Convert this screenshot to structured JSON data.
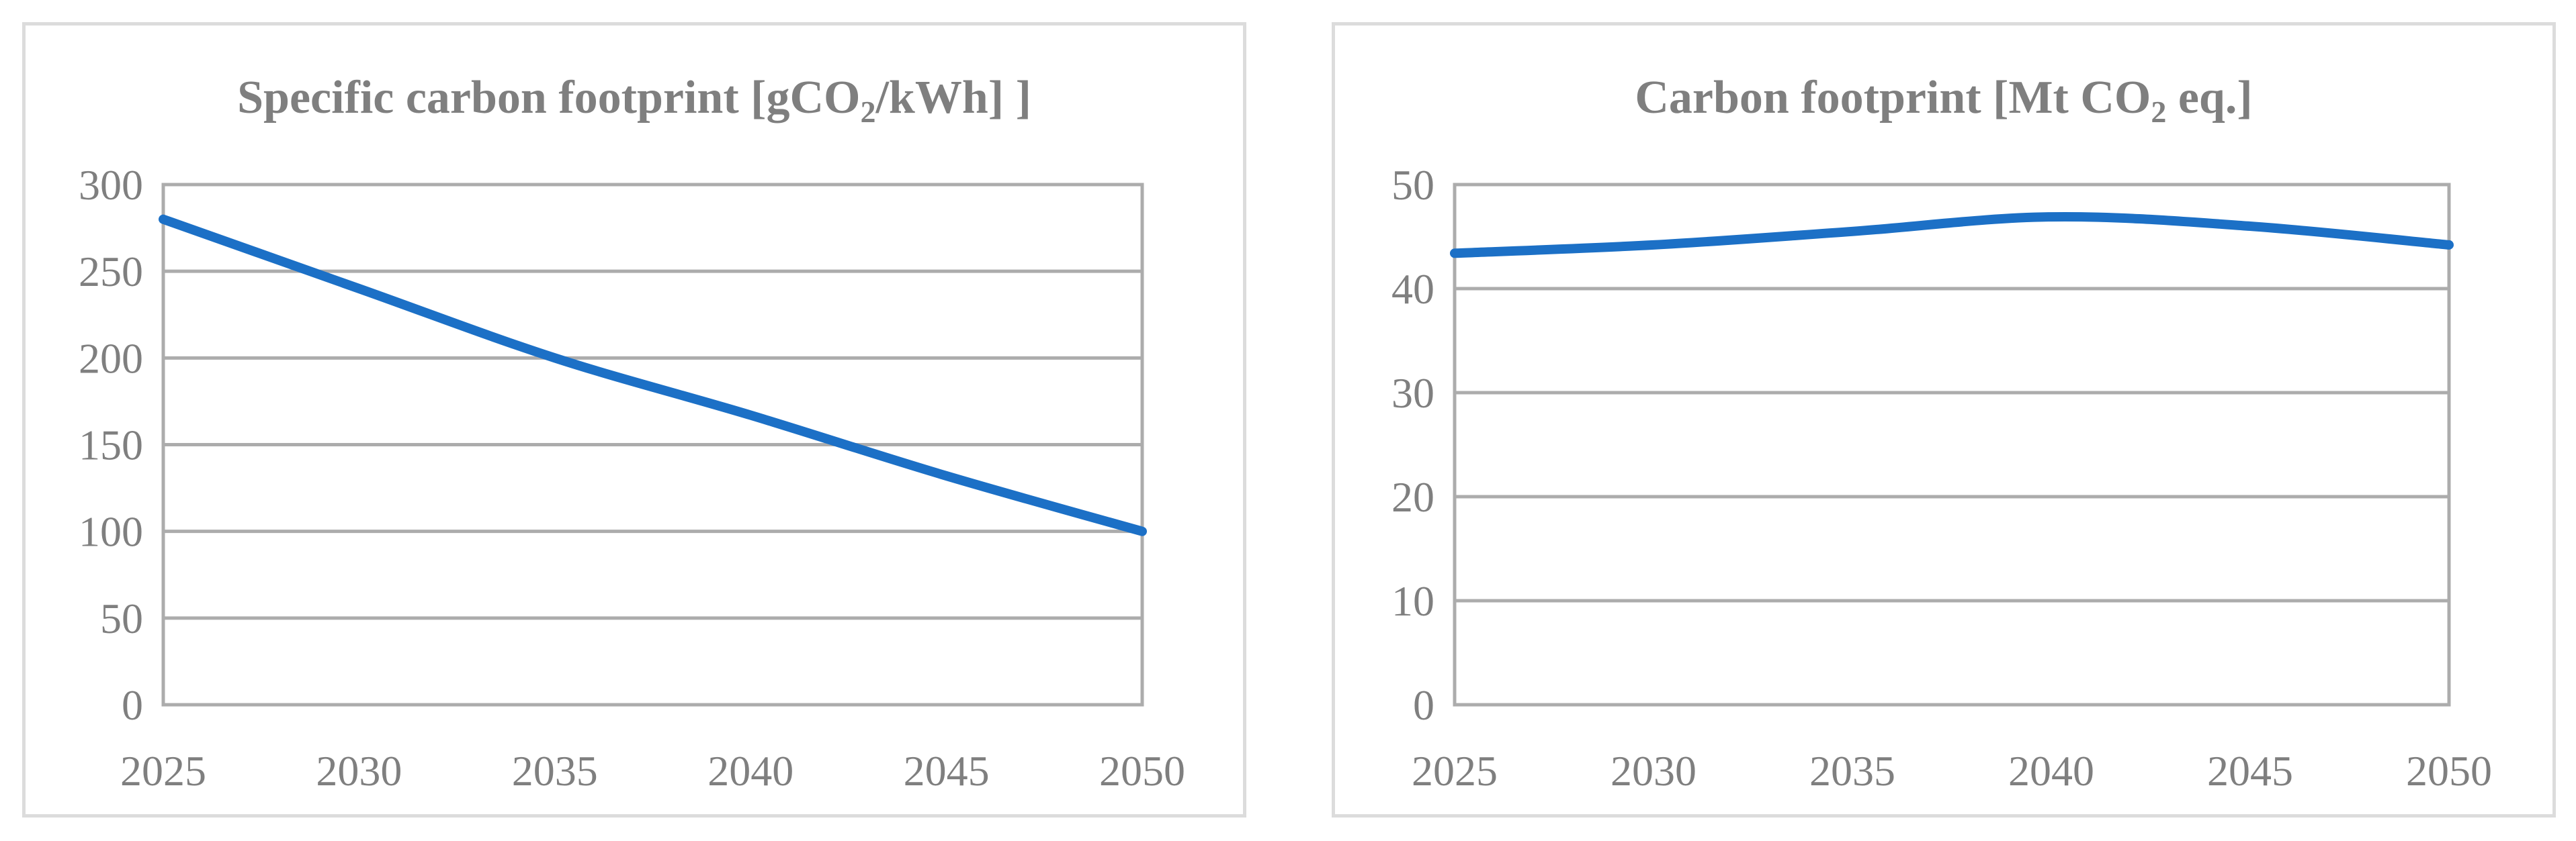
{
  "style": {
    "background": "#ffffff",
    "panel_border_color": "#dcdcdc",
    "line_color": "#1c70c6",
    "grid_color": "#acacac",
    "text_color": "#7f7f7f"
  },
  "chart_data": [
    {
      "type": "line",
      "title": "Specific carbon footprint [gCO2/kWh] ]",
      "title_parts": {
        "pre": "Specific carbon footprint [gCO",
        "sub": "2",
        "post": "/kWh] ]"
      },
      "categories": [
        "2025",
        "2030",
        "2035",
        "2040",
        "2045",
        "2050"
      ],
      "series": [
        {
          "name": "Specific carbon footprint",
          "values": [
            280,
            240,
            200,
            167,
            132,
            100
          ]
        }
      ],
      "xlabel": "",
      "ylabel": "",
      "ylim": [
        0,
        300
      ],
      "yticks": [
        0,
        50,
        100,
        150,
        200,
        250,
        300
      ],
      "grid": "horizontal",
      "legend": "none",
      "smoothed": true,
      "layout": {
        "plot_left": 205,
        "plot_right": 1662,
        "plot_top": 237,
        "plot_bottom": 1012,
        "x_label_baseline": 1132,
        "y_label_gap": 30
      }
    },
    {
      "type": "line",
      "title": "Carbon footprint [Mt CO2 eq.]",
      "title_parts": {
        "pre": "Carbon footprint [Mt CO",
        "sub": "2",
        "post": " eq.]"
      },
      "categories": [
        "2025",
        "2030",
        "2035",
        "2040",
        "2045",
        "2050"
      ],
      "series": [
        {
          "name": "Carbon footprint",
          "values": [
            43.4,
            44.2,
            45.5,
            46.9,
            46.0,
            44.2
          ]
        }
      ],
      "xlabel": "",
      "ylabel": "",
      "ylim": [
        0,
        50
      ],
      "yticks": [
        0,
        10,
        20,
        30,
        40,
        50
      ],
      "grid": "horizontal",
      "legend": "none",
      "smoothed": true,
      "layout": {
        "plot_left": 178,
        "plot_right": 1658,
        "plot_top": 237,
        "plot_bottom": 1012,
        "x_label_baseline": 1132,
        "y_label_gap": 30
      }
    }
  ]
}
